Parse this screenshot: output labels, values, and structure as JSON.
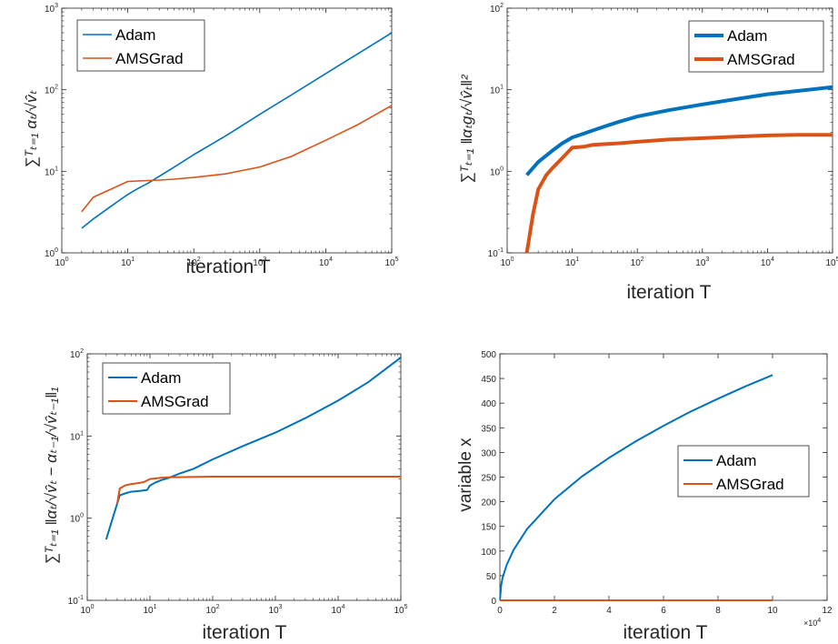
{
  "colors": {
    "adam": "#0072BD",
    "amsgrad": "#D95319",
    "axis": "#262626"
  },
  "chart_data": [
    {
      "type": "line",
      "xscale": "log",
      "yscale": "log",
      "xlim": [
        1,
        100000
      ],
      "ylim": [
        1,
        1000
      ],
      "xticks": [
        1,
        10,
        100,
        1000,
        10000,
        100000
      ],
      "yticks": [
        1,
        10,
        100,
        1000
      ],
      "xtick_labels": [
        [
          "10",
          "0"
        ],
        [
          "10",
          "1"
        ],
        [
          "10",
          "2"
        ],
        [
          "10",
          "3"
        ],
        [
          "10",
          "4"
        ],
        [
          "10",
          "5"
        ]
      ],
      "ytick_labels": [
        [
          "10",
          "0"
        ],
        [
          "10",
          "1"
        ],
        [
          "10",
          "2"
        ],
        [
          "10",
          "3"
        ]
      ],
      "xlabel": "iteration T",
      "ylabel": "∑ᵀₜ₌₁ αₜ/√v̂ₜ",
      "legend": {
        "location": "top-left",
        "entries": [
          "Adam",
          "AMSGrad"
        ]
      },
      "line_width": "thin",
      "series": [
        {
          "name": "Adam",
          "x": [
            2,
            3,
            5,
            8,
            10,
            15,
            20,
            30,
            50,
            100,
            300,
            1000,
            3000,
            10000,
            30000,
            100000
          ],
          "y": [
            2.0,
            2.6,
            3.5,
            4.6,
            5.2,
            6.3,
            7.1,
            8.7,
            11.2,
            16,
            27,
            50,
            86,
            158,
            273,
            500
          ]
        },
        {
          "name": "AMSGrad",
          "x": [
            2,
            3,
            5,
            10,
            20,
            30,
            50,
            100,
            300,
            1000,
            3000,
            10000,
            30000,
            100000
          ],
          "y": [
            3.2,
            4.8,
            5.8,
            7.5,
            7.7,
            7.8,
            8.0,
            8.4,
            9.3,
            11.3,
            15.2,
            24,
            37,
            64
          ]
        }
      ]
    },
    {
      "type": "line",
      "xscale": "log",
      "yscale": "log",
      "xlim": [
        1,
        100000
      ],
      "ylim": [
        0.1,
        100
      ],
      "xticks": [
        1,
        10,
        100,
        1000,
        10000,
        100000
      ],
      "yticks": [
        0.1,
        1,
        10,
        100
      ],
      "xtick_labels": [
        [
          "10",
          "0"
        ],
        [
          "10",
          "1"
        ],
        [
          "10",
          "2"
        ],
        [
          "10",
          "3"
        ],
        [
          "10",
          "4"
        ],
        [
          "10",
          "5"
        ]
      ],
      "ytick_labels": [
        [
          "10",
          "-1"
        ],
        [
          "10",
          "0"
        ],
        [
          "10",
          "1"
        ],
        [
          "10",
          "2"
        ]
      ],
      "xlabel": "iteration T",
      "ylabel": "∑ᵀₜ₌₁ ‖αₜgₜ/√v̂ₜ‖²",
      "legend": {
        "location": "top-right",
        "entries": [
          "Adam",
          "AMSGrad"
        ]
      },
      "line_width": "thick",
      "series": [
        {
          "name": "Adam",
          "x": [
            2,
            3,
            5,
            7,
            10,
            15,
            20,
            30,
            50,
            100,
            300,
            1000,
            3000,
            10000,
            30000,
            100000
          ],
          "y": [
            0.9,
            1.3,
            1.8,
            2.2,
            2.6,
            2.9,
            3.15,
            3.5,
            4.0,
            4.7,
            5.6,
            6.6,
            7.6,
            8.8,
            9.7,
            10.8
          ]
        },
        {
          "name": "AMSGrad",
          "x": [
            2,
            2.5,
            3,
            4,
            5,
            7,
            10,
            15,
            20,
            30,
            50,
            100,
            300,
            1000,
            3000,
            10000,
            30000,
            100000
          ],
          "y": [
            0.1,
            0.3,
            0.6,
            0.9,
            1.1,
            1.45,
            1.95,
            2.0,
            2.1,
            2.15,
            2.2,
            2.3,
            2.45,
            2.55,
            2.65,
            2.75,
            2.8,
            2.8
          ]
        }
      ]
    },
    {
      "type": "line",
      "xscale": "log",
      "yscale": "log",
      "xlim": [
        1,
        100000
      ],
      "ylim": [
        0.1,
        100
      ],
      "xticks": [
        1,
        10,
        100,
        1000,
        10000,
        100000
      ],
      "yticks": [
        0.1,
        1,
        10,
        100
      ],
      "xtick_labels": [
        [
          "10",
          "0"
        ],
        [
          "10",
          "1"
        ],
        [
          "10",
          "2"
        ],
        [
          "10",
          "3"
        ],
        [
          "10",
          "4"
        ],
        [
          "10",
          "5"
        ]
      ],
      "ytick_labels": [
        [
          "10",
          "-1"
        ],
        [
          "10",
          "0"
        ],
        [
          "10",
          "1"
        ],
        [
          "10",
          "2"
        ]
      ],
      "xlabel": "iteration T",
      "ylabel": "∑ᵀₜ₌₁ ‖αₜ/√v̂ₜ − αₜ₋₁/√v̂ₜ₋₁‖₁",
      "legend": {
        "location": "top-left",
        "entries": [
          "Adam",
          "AMSGrad"
        ]
      },
      "line_width": "medium",
      "series": [
        {
          "name": "Adam",
          "x": [
            2,
            3,
            3.3,
            4,
            5,
            7,
            9,
            10,
            12,
            15,
            20,
            30,
            50,
            100,
            300,
            1000,
            3000,
            10000,
            30000,
            100000
          ],
          "y": [
            0.55,
            1.5,
            1.9,
            2.0,
            2.1,
            2.15,
            2.2,
            2.5,
            2.7,
            2.9,
            3.1,
            3.5,
            4.0,
            5.2,
            7.5,
            11,
            16.5,
            27,
            45,
            90
          ]
        },
        {
          "name": "AMSGrad",
          "x": [
            3,
            3.3,
            4,
            5,
            7,
            8,
            10,
            15,
            20,
            100,
            1000,
            10000,
            100000
          ],
          "y": [
            1.5,
            2.3,
            2.5,
            2.6,
            2.7,
            2.75,
            3.0,
            3.1,
            3.15,
            3.2,
            3.2,
            3.2,
            3.2
          ]
        }
      ]
    },
    {
      "type": "line",
      "xscale": "linear",
      "yscale": "linear",
      "xlim": [
        0,
        120000
      ],
      "ylim": [
        0,
        500
      ],
      "xticks": [
        0,
        20000,
        40000,
        60000,
        80000,
        100000,
        120000
      ],
      "yticks": [
        0,
        50,
        100,
        150,
        200,
        250,
        300,
        350,
        400,
        450,
        500
      ],
      "xtick_labels": [
        "0",
        "2",
        "4",
        "6",
        "8",
        "10",
        "12"
      ],
      "ytick_labels": [
        "0",
        "50",
        "100",
        "150",
        "200",
        "250",
        "300",
        "350",
        "400",
        "450",
        "500"
      ],
      "x_exponent": {
        "base": "×10",
        "power": "4"
      },
      "xlabel": "iteration T",
      "ylabel": "variable x",
      "legend": {
        "location": "middle-right",
        "entries": [
          "Adam",
          "AMSGrad"
        ]
      },
      "line_width": "medium",
      "series": [
        {
          "name": "Adam",
          "x": [
            0,
            500,
            1000,
            2500,
            5000,
            10000,
            20000,
            30000,
            40000,
            50000,
            60000,
            70000,
            80000,
            90000,
            100000
          ],
          "y": [
            0,
            32,
            46,
            72,
            102,
            145,
            205,
            251,
            289,
            323,
            354,
            383,
            409,
            434,
            457
          ]
        },
        {
          "name": "AMSGrad",
          "x": [
            0,
            100000
          ],
          "y": [
            0,
            0
          ]
        }
      ]
    }
  ]
}
